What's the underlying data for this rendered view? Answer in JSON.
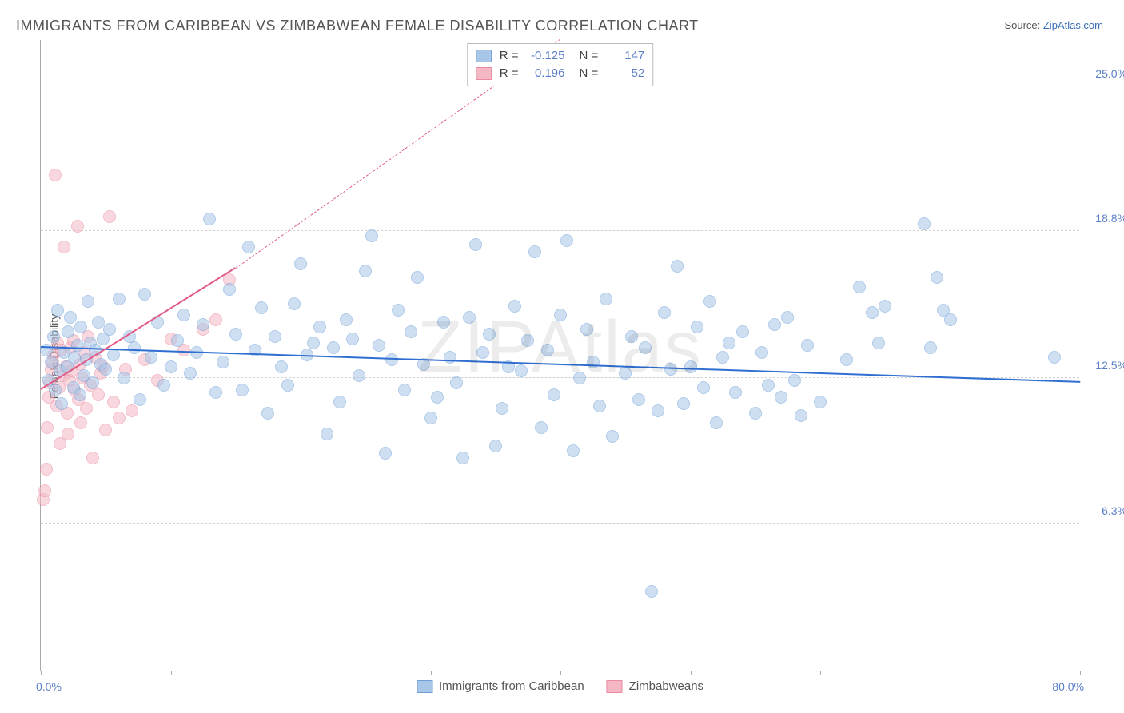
{
  "title": "IMMIGRANTS FROM CARIBBEAN VS ZIMBABWEAN FEMALE DISABILITY CORRELATION CHART",
  "source_prefix": "Source: ",
  "source_name": "ZipAtlas.com",
  "watermark": "ZIPAtlas",
  "chart": {
    "type": "scatter",
    "ylabel": "Female Disability",
    "xlim": [
      0,
      80
    ],
    "ylim": [
      0,
      27
    ],
    "xlim_labels": {
      "min": "0.0%",
      "max": "80.0%"
    },
    "ytick_positions": [
      6.3,
      12.5,
      18.8,
      25.0
    ],
    "ytick_labels": [
      "6.3%",
      "12.5%",
      "18.8%",
      "25.0%"
    ],
    "xtick_positions": [
      0,
      10,
      20,
      30,
      40,
      50,
      60,
      70,
      80
    ],
    "background_color": "#ffffff",
    "grid_color": "#d0d0d0",
    "axis_color": "#aaaaaa",
    "marker_radius": 8,
    "marker_border_width": 1.5
  },
  "series": [
    {
      "id": "caribbean",
      "label": "Immigrants from Caribbean",
      "fill_color": "#a8c6e8",
      "fill_opacity": 0.55,
      "border_color": "#6fa0d6",
      "trend": {
        "x1": 0,
        "y1": 13.8,
        "x2": 80,
        "y2": 12.3,
        "color": "#2f6fd1",
        "width": 2.5,
        "dash": "solid"
      },
      "R": "-0.125",
      "N": "147",
      "points": [
        [
          0.4,
          13.7
        ],
        [
          0.6,
          12.4
        ],
        [
          0.8,
          13.2
        ],
        [
          1.0,
          14.3
        ],
        [
          1.1,
          12.0
        ],
        [
          1.3,
          15.4
        ],
        [
          1.5,
          12.8
        ],
        [
          1.6,
          11.4
        ],
        [
          1.8,
          13.6
        ],
        [
          2.0,
          13.0
        ],
        [
          2.1,
          14.5
        ],
        [
          2.3,
          15.1
        ],
        [
          2.5,
          12.1
        ],
        [
          2.6,
          13.4
        ],
        [
          2.8,
          13.9
        ],
        [
          3.0,
          11.8
        ],
        [
          3.1,
          14.7
        ],
        [
          3.3,
          12.6
        ],
        [
          3.5,
          13.3
        ],
        [
          3.6,
          15.8
        ],
        [
          3.8,
          14.0
        ],
        [
          4.0,
          12.3
        ],
        [
          4.2,
          13.7
        ],
        [
          4.4,
          14.9
        ],
        [
          4.6,
          13.1
        ],
        [
          4.8,
          14.2
        ],
        [
          5.0,
          12.9
        ],
        [
          5.3,
          14.6
        ],
        [
          5.6,
          13.5
        ],
        [
          6.0,
          15.9
        ],
        [
          6.4,
          12.5
        ],
        [
          6.8,
          14.3
        ],
        [
          7.2,
          13.8
        ],
        [
          7.6,
          11.6
        ],
        [
          8.0,
          16.1
        ],
        [
          8.5,
          13.4
        ],
        [
          9.0,
          14.9
        ],
        [
          9.5,
          12.2
        ],
        [
          10.0,
          13.0
        ],
        [
          10.5,
          14.1
        ],
        [
          11.0,
          15.2
        ],
        [
          11.5,
          12.7
        ],
        [
          12.0,
          13.6
        ],
        [
          12.5,
          14.8
        ],
        [
          13.0,
          19.3
        ],
        [
          13.5,
          11.9
        ],
        [
          14.0,
          13.2
        ],
        [
          14.5,
          16.3
        ],
        [
          15.0,
          14.4
        ],
        [
          15.5,
          12.0
        ],
        [
          16.0,
          18.1
        ],
        [
          16.5,
          13.7
        ],
        [
          17.0,
          15.5
        ],
        [
          17.5,
          11.0
        ],
        [
          18.0,
          14.3
        ],
        [
          18.5,
          13.0
        ],
        [
          19.0,
          12.2
        ],
        [
          19.5,
          15.7
        ],
        [
          20.0,
          17.4
        ],
        [
          20.5,
          13.5
        ],
        [
          21.0,
          14.0
        ],
        [
          21.5,
          14.7
        ],
        [
          22.0,
          10.1
        ],
        [
          22.5,
          13.8
        ],
        [
          23.0,
          11.5
        ],
        [
          23.5,
          15.0
        ],
        [
          24.0,
          14.2
        ],
        [
          24.5,
          12.6
        ],
        [
          25.0,
          17.1
        ],
        [
          25.5,
          18.6
        ],
        [
          26.0,
          13.9
        ],
        [
          26.5,
          9.3
        ],
        [
          27.0,
          13.3
        ],
        [
          27.5,
          15.4
        ],
        [
          28.0,
          12.0
        ],
        [
          28.5,
          14.5
        ],
        [
          29.0,
          16.8
        ],
        [
          29.5,
          13.1
        ],
        [
          30.0,
          10.8
        ],
        [
          30.5,
          11.7
        ],
        [
          31.0,
          14.9
        ],
        [
          31.5,
          13.4
        ],
        [
          32.0,
          12.3
        ],
        [
          32.5,
          9.1
        ],
        [
          33.0,
          15.1
        ],
        [
          33.5,
          18.2
        ],
        [
          34.0,
          13.6
        ],
        [
          34.5,
          14.4
        ],
        [
          35.0,
          9.6
        ],
        [
          35.5,
          11.2
        ],
        [
          36.0,
          13.0
        ],
        [
          36.5,
          15.6
        ],
        [
          37.0,
          12.8
        ],
        [
          37.5,
          14.1
        ],
        [
          38.0,
          17.9
        ],
        [
          38.5,
          10.4
        ],
        [
          39.0,
          13.7
        ],
        [
          39.5,
          11.8
        ],
        [
          40.0,
          15.2
        ],
        [
          40.5,
          18.4
        ],
        [
          41.0,
          9.4
        ],
        [
          41.5,
          12.5
        ],
        [
          42.0,
          14.6
        ],
        [
          42.5,
          13.2
        ],
        [
          43.0,
          11.3
        ],
        [
          43.5,
          15.9
        ],
        [
          44.0,
          10.0
        ],
        [
          45.0,
          12.7
        ],
        [
          45.5,
          14.3
        ],
        [
          46.0,
          11.6
        ],
        [
          46.5,
          13.8
        ],
        [
          47.0,
          3.4
        ],
        [
          47.5,
          11.1
        ],
        [
          48.0,
          15.3
        ],
        [
          48.5,
          12.9
        ],
        [
          49.0,
          17.3
        ],
        [
          49.5,
          11.4
        ],
        [
          50.0,
          13.0
        ],
        [
          50.5,
          14.7
        ],
        [
          51.0,
          12.1
        ],
        [
          51.5,
          15.8
        ],
        [
          52.0,
          10.6
        ],
        [
          52.5,
          13.4
        ],
        [
          53.0,
          14.0
        ],
        [
          53.5,
          11.9
        ],
        [
          54.0,
          14.5
        ],
        [
          55.0,
          11.0
        ],
        [
          55.5,
          13.6
        ],
        [
          56.0,
          12.2
        ],
        [
          56.5,
          14.8
        ],
        [
          57.0,
          11.7
        ],
        [
          57.5,
          15.1
        ],
        [
          58.0,
          12.4
        ],
        [
          58.5,
          10.9
        ],
        [
          59.0,
          13.9
        ],
        [
          60.0,
          11.5
        ],
        [
          62.0,
          13.3
        ],
        [
          63.0,
          16.4
        ],
        [
          64.0,
          15.3
        ],
        [
          64.5,
          14.0
        ],
        [
          65.0,
          15.6
        ],
        [
          68.0,
          19.1
        ],
        [
          68.5,
          13.8
        ],
        [
          69.0,
          16.8
        ],
        [
          69.5,
          15.4
        ],
        [
          70.0,
          15.0
        ],
        [
          78.0,
          13.4
        ]
      ]
    },
    {
      "id": "zimbabwean",
      "label": "Zimbabweans",
      "fill_color": "#f4b8c4",
      "fill_opacity": 0.55,
      "border_color": "#e88aa0",
      "trend": {
        "x1": 0,
        "y1": 12.0,
        "x2": 15,
        "y2": 17.2,
        "color": "#e15b86",
        "width": 2.5,
        "dash": "solid",
        "extend_dash_to_x": 40,
        "extend_dash_to_y": 27
      },
      "R": "0.196",
      "N": "52",
      "points": [
        [
          0.2,
          7.3
        ],
        [
          0.3,
          7.7
        ],
        [
          0.4,
          8.6
        ],
        [
          0.5,
          10.4
        ],
        [
          0.6,
          11.7
        ],
        [
          0.7,
          12.3
        ],
        [
          0.8,
          12.9
        ],
        [
          0.9,
          13.2
        ],
        [
          1.0,
          13.5
        ],
        [
          1.1,
          21.2
        ],
        [
          1.2,
          11.3
        ],
        [
          1.3,
          14.0
        ],
        [
          1.4,
          12.1
        ],
        [
          1.5,
          9.7
        ],
        [
          1.6,
          13.7
        ],
        [
          1.7,
          12.6
        ],
        [
          1.8,
          18.1
        ],
        [
          1.9,
          13.0
        ],
        [
          2.0,
          11.0
        ],
        [
          2.1,
          10.1
        ],
        [
          2.2,
          12.4
        ],
        [
          2.3,
          13.8
        ],
        [
          2.4,
          12.8
        ],
        [
          2.5,
          14.1
        ],
        [
          2.6,
          12.0
        ],
        [
          2.8,
          19.0
        ],
        [
          2.9,
          11.6
        ],
        [
          3.0,
          13.1
        ],
        [
          3.1,
          10.6
        ],
        [
          3.2,
          12.5
        ],
        [
          3.3,
          13.6
        ],
        [
          3.5,
          11.2
        ],
        [
          3.6,
          14.3
        ],
        [
          3.8,
          12.2
        ],
        [
          4.0,
          9.1
        ],
        [
          4.2,
          13.4
        ],
        [
          4.4,
          11.8
        ],
        [
          4.6,
          12.7
        ],
        [
          4.8,
          13.0
        ],
        [
          5.0,
          10.3
        ],
        [
          5.3,
          19.4
        ],
        [
          5.6,
          11.5
        ],
        [
          6.0,
          10.8
        ],
        [
          6.5,
          12.9
        ],
        [
          7.0,
          11.1
        ],
        [
          8.0,
          13.3
        ],
        [
          9.0,
          12.4
        ],
        [
          10.0,
          14.2
        ],
        [
          11.0,
          13.7
        ],
        [
          12.5,
          14.6
        ],
        [
          13.5,
          15.0
        ],
        [
          14.5,
          16.7
        ]
      ]
    }
  ],
  "legend_top": {
    "R_label": "R =",
    "N_label": "N ="
  },
  "label_color_blue": "#5b7fc7",
  "label_color_text": "#555555"
}
